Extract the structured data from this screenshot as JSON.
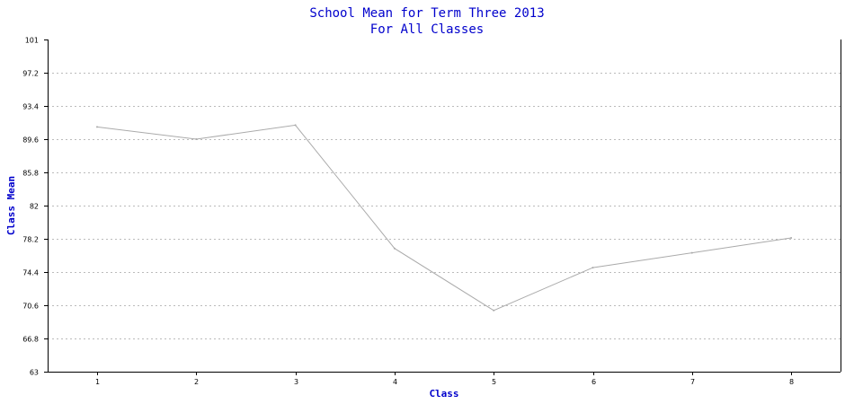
{
  "chart_data": {
    "type": "line",
    "title": "School Mean for Term Three 2013",
    "subtitle": "For All Classes",
    "xlabel": "Class",
    "ylabel": "Class Mean",
    "categories": [
      "1",
      "2",
      "3",
      "4",
      "5",
      "6",
      "7",
      "8"
    ],
    "series": [
      {
        "values": [
          91.0,
          89.6,
          91.2,
          77.1,
          70.0,
          74.9,
          76.6,
          78.3
        ]
      }
    ],
    "ylim": [
      63,
      101
    ],
    "yticks": [
      "101",
      "97.2",
      "93.4",
      "89.6",
      "85.8",
      "82",
      "78.2",
      "74.4",
      "70.6",
      "66.8",
      "63"
    ],
    "grid": true,
    "line_color": "#aaaaaa",
    "title_color": "#0000cc"
  }
}
